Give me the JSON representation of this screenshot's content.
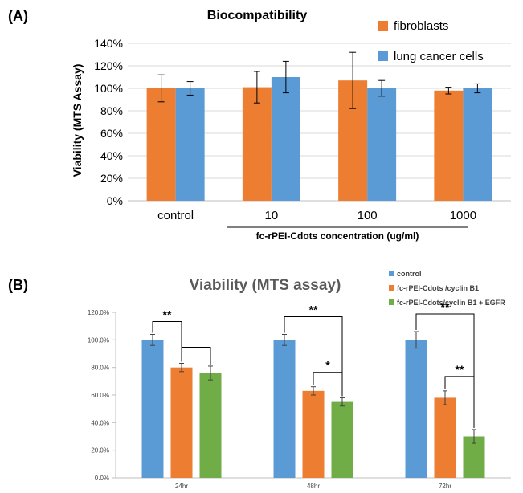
{
  "colors": {
    "fibroblasts": "#ED7D31",
    "lung": "#5B9BD5",
    "control": "#5B9BD5",
    "cyclin": "#ED7D31",
    "egfr": "#70AD47",
    "axis": "#D9D9D9",
    "text": "#000000"
  },
  "chart_data": [
    {
      "panel_label": "(A)",
      "type": "bar",
      "title": "Biocompatibility",
      "ylabel": "Viability (MTS Assay)",
      "xlabel": "fc-rPEI-Cdots concentration (ug/ml)",
      "categories": [
        "control",
        "10",
        "100",
        "1000"
      ],
      "ylim": [
        0,
        140
      ],
      "yticks": [
        "0%",
        "20%",
        "40%",
        "60%",
        "80%",
        "100%",
        "120%",
        "140%"
      ],
      "legend_position": "top-right",
      "series": [
        {
          "name": "fibroblasts",
          "values": [
            100,
            101,
            107,
            98
          ],
          "errors": [
            12,
            14,
            25,
            3
          ]
        },
        {
          "name": "lung cancer cells",
          "values": [
            100,
            110,
            100,
            100
          ],
          "errors": [
            6,
            14,
            7,
            4
          ]
        }
      ]
    },
    {
      "panel_label": "(B)",
      "type": "bar",
      "title": "Viability (MTS assay)",
      "categories": [
        "24hr",
        "48hr",
        "72hr"
      ],
      "ylim": [
        0,
        120
      ],
      "yticks": [
        "0.0%",
        "20.0%",
        "40.0%",
        "60.0%",
        "80.0%",
        "100.0%",
        "120.0%"
      ],
      "legend_position": "top-right",
      "series": [
        {
          "name": "control",
          "values": [
            100,
            100,
            100
          ],
          "errors": [
            4,
            4,
            6
          ]
        },
        {
          "name": "fc-rPEI-Cdots /cyclin B1",
          "values": [
            80,
            63,
            58
          ],
          "errors": [
            3,
            3,
            5
          ]
        },
        {
          "name": "fc-rPEI-Cdots/cyclin B1 + EGFR",
          "values": [
            76,
            55,
            30
          ],
          "errors": [
            5,
            3,
            5
          ]
        }
      ],
      "significance": [
        {
          "category": 0,
          "from": 0,
          "to": 1,
          "label": "**"
        },
        {
          "category": 0,
          "from": 1,
          "to": 2,
          "label": ""
        },
        {
          "category": 1,
          "from": 0,
          "to": 2,
          "label": "**"
        },
        {
          "category": 1,
          "from": 1,
          "to": 2,
          "label": "*"
        },
        {
          "category": 2,
          "from": 0,
          "to": 2,
          "label": "**"
        },
        {
          "category": 2,
          "from": 1,
          "to": 2,
          "label": "**"
        }
      ]
    }
  ]
}
